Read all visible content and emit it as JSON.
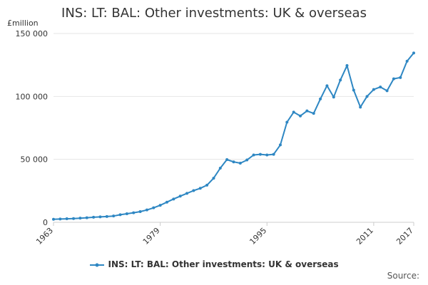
{
  "chart_data": {
    "type": "line",
    "title": "INS: LT: BAL: Other investments: UK & overseas",
    "ylabel": "£million",
    "xlabel": "",
    "ylim": [
      0,
      150000
    ],
    "xlim": [
      1963,
      2017
    ],
    "y_ticks": [
      0,
      50000,
      100000,
      150000
    ],
    "y_tick_labels": [
      "0",
      "50 000",
      "100 000",
      "150 000"
    ],
    "x_tick_labels": [
      "1963",
      "1979",
      "1995",
      "2011",
      "2017"
    ],
    "x_ticks": [
      1963,
      1979,
      1995,
      2011,
      2017
    ],
    "grid": true,
    "legend_position": "bottom",
    "colors": {
      "series": "#2e87c3",
      "grid": "#e6e6e6",
      "axis": "#cccccc"
    },
    "series": [
      {
        "name": "INS: LT: BAL: Other investments: UK & overseas",
        "x": [
          1963,
          1964,
          1965,
          1966,
          1967,
          1968,
          1969,
          1970,
          1971,
          1972,
          1973,
          1974,
          1975,
          1976,
          1977,
          1978,
          1979,
          1980,
          1981,
          1982,
          1983,
          1984,
          1985,
          1986,
          1987,
          1988,
          1989,
          1990,
          1991,
          1992,
          1993,
          1994,
          1995,
          1996,
          1997,
          1998,
          1999,
          2000,
          2001,
          2002,
          2003,
          2004,
          2005,
          2006,
          2007,
          2008,
          2009,
          2010,
          2011,
          2012,
          2013,
          2014,
          2015,
          2016,
          2017
        ],
        "values": [
          2400,
          2600,
          2800,
          3000,
          3300,
          3600,
          4000,
          4300,
          4600,
          5000,
          6000,
          6800,
          7600,
          8500,
          9800,
          11500,
          13500,
          16000,
          18500,
          20800,
          23000,
          25200,
          27000,
          29500,
          35000,
          43000,
          49800,
          48000,
          47000,
          49500,
          53500,
          54000,
          53500,
          54000,
          61500,
          79500,
          87500,
          84500,
          88500,
          86500,
          98000,
          108500,
          99500,
          113000,
          124500,
          105000,
          91500,
          100000,
          105500,
          107500,
          104500,
          114000,
          115000,
          128000,
          134500
        ]
      }
    ]
  },
  "legend": {
    "label": "INS: LT: BAL: Other investments: UK & overseas"
  },
  "source": {
    "label": "Source:"
  }
}
